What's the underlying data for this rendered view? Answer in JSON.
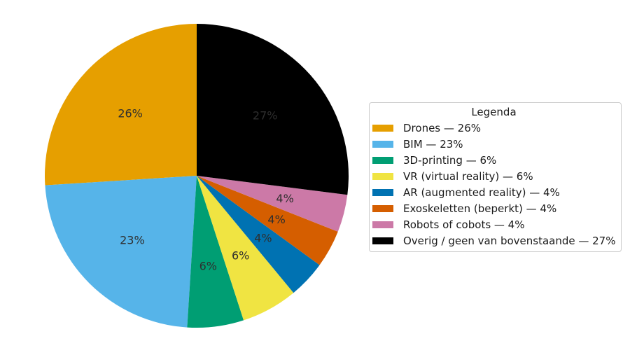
{
  "chart_data": {
    "type": "pie",
    "legend_title": "Legenda",
    "legend_position": "right",
    "start_angle_deg": 90,
    "direction": "counterclockwise",
    "label_distance": 0.6,
    "label_color": "#2e2e2e",
    "legend_border_color": "#cccccc",
    "background": "#ffffff",
    "slices": [
      {
        "label": "Drones",
        "value": 26,
        "pct_label": "26%",
        "legend_label": "Drones — 26%",
        "color": "#E69F00"
      },
      {
        "label": "BIM",
        "value": 23,
        "pct_label": "23%",
        "legend_label": "BIM — 23%",
        "color": "#56B4E9"
      },
      {
        "label": "3D-printing",
        "value": 6,
        "pct_label": "6%",
        "legend_label": "3D-printing — 6%",
        "color": "#009E73"
      },
      {
        "label": "VR (virtual reality)",
        "value": 6,
        "pct_label": "6%",
        "legend_label": "VR (virtual reality) — 6%",
        "color": "#F0E442"
      },
      {
        "label": "AR (augmented reality)",
        "value": 4,
        "pct_label": "4%",
        "legend_label": "AR (augmented reality) — 4%",
        "color": "#0072B2"
      },
      {
        "label": "Exoskeletten (beperkt)",
        "value": 4,
        "pct_label": "4%",
        "legend_label": "Exoskeletten (beperkt) — 4%",
        "color": "#D55E00"
      },
      {
        "label": "Robots of cobots",
        "value": 4,
        "pct_label": "4%",
        "legend_label": "Robots of cobots — 4%",
        "color": "#CC79A7"
      },
      {
        "label": "Overig / geen van bovenstaande",
        "value": 27,
        "pct_label": "27%",
        "legend_label": "Overig / geen van bovenstaande — 27%",
        "color": "#000000"
      }
    ]
  }
}
